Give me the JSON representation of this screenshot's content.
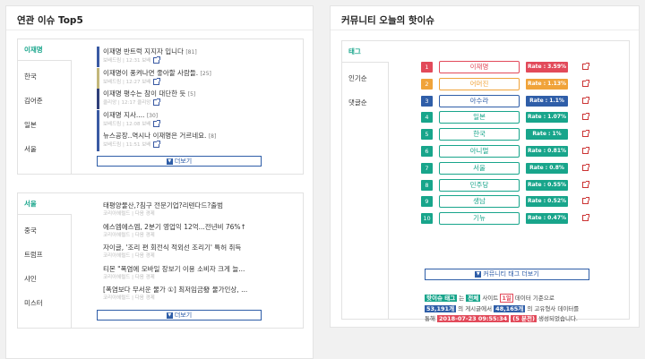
{
  "left": {
    "title": "연관 이슈 Top5",
    "box1": {
      "tabs": [
        "이재명",
        "한국",
        "김어준",
        "일본",
        "서울"
      ],
      "items": [
        {
          "title": "이재명 반트럭 지지자 입니다",
          "count": "[81]",
          "sub": "보배드림 | 12:31 보배"
        },
        {
          "title": "이재명이 풍켜나면 좋아할 사람들.",
          "count": "[25]",
          "sub": "보배드림 | 12:27 보배"
        },
        {
          "title": "이재명 평수는 참이 대단한 듯",
          "count": "[5]",
          "sub": "클리앙 | 12:17 클리앙"
        },
        {
          "title": "이재명 지사....",
          "count": "[30]",
          "sub": "보배드림 | 12:08 보배"
        },
        {
          "title": "뉴스공장..역시나 이재명은 거르네요.",
          "count": "[8]",
          "sub": "보배드림 | 11:51 보배"
        }
      ],
      "more_label": "더보기"
    },
    "box2": {
      "tabs": [
        "서울",
        "중국",
        "트럼프",
        "샤인",
        "미스터"
      ],
      "items": [
        {
          "title": "태평양물산,?침구 전문기업?리텐다드?출범",
          "count": "",
          "sub": "코리아헤럴드 | 다음 경제"
        },
        {
          "title": "에스엠에스엠, 2분기 영업익 12억...전년비 76%↑",
          "count": "",
          "sub": "코리아헤럴드 | 다음 경제"
        },
        {
          "title": "자이글, '조리 편 회전식 적외선 조리기' 특허 취득",
          "count": "",
          "sub": "코리아헤럴드 | 다음 경제"
        },
        {
          "title": "티몬 \"폭염에 모바일 장보기 이용 소비자 크게 늘...",
          "count": "",
          "sub": "코리아헤럴드 | 다음 경제"
        },
        {
          "title": "[폭염보다 무서운 물가 ①] 최저임금發 물가인상, ...",
          "count": "",
          "sub": "코리아헤럴드 | 다음 경제"
        }
      ],
      "more_label": "더보기"
    }
  },
  "right": {
    "title": "커뮤니티 오늘의 핫이슈",
    "tabs": [
      "태그",
      "인기순",
      "댓글순"
    ],
    "ranks": [
      {
        "num": "1",
        "keyword": "이재명",
        "rate": "Rate : 3.59%",
        "color": "#e24a5a"
      },
      {
        "num": "2",
        "keyword": "어머진",
        "rate": "Rate : 1.13%",
        "color": "#f0a33a"
      },
      {
        "num": "3",
        "keyword": "아수라",
        "rate": "Rate : 1.1%",
        "color": "#2f5ea8"
      },
      {
        "num": "4",
        "keyword": "일본",
        "rate": "Rate : 1.07%",
        "color": "#18a58b"
      },
      {
        "num": "5",
        "keyword": "한국",
        "rate": "Rate : 1%",
        "color": "#18a58b"
      },
      {
        "num": "6",
        "keyword": "아니멀",
        "rate": "Rate : 0.81%",
        "color": "#18a58b"
      },
      {
        "num": "7",
        "keyword": "서울",
        "rate": "Rate : 0.8%",
        "color": "#18a58b"
      },
      {
        "num": "8",
        "keyword": "민주당",
        "rate": "Rate : 0.55%",
        "color": "#18a58b"
      },
      {
        "num": "9",
        "keyword": "생남",
        "rate": "Rate : 0.52%",
        "color": "#18a58b"
      },
      {
        "num": "10",
        "keyword": "기뉴",
        "rate": "Rate : 0.47%",
        "color": "#18a58b"
      }
    ],
    "more_label": "커뮤니티 태그 더보기",
    "summary": {
      "tag1": "핫이슈 태그",
      "t1": " 는 ",
      "tag2": "전체",
      "t2": " 사이트 ",
      "tag3": "1일",
      "t3": " 데이터 기준으로",
      "tag4": "53,191개",
      "t4": " 의 게시글에서 ",
      "tag5": "48,165개",
      "t5": " 의 고유형사 데이터를",
      "t6": "통해 ",
      "tag6": "2018-07-23 09:55:34",
      "t7": " ",
      "tag7": "(5 분전)",
      "t8": " 생성되었습니다."
    }
  }
}
